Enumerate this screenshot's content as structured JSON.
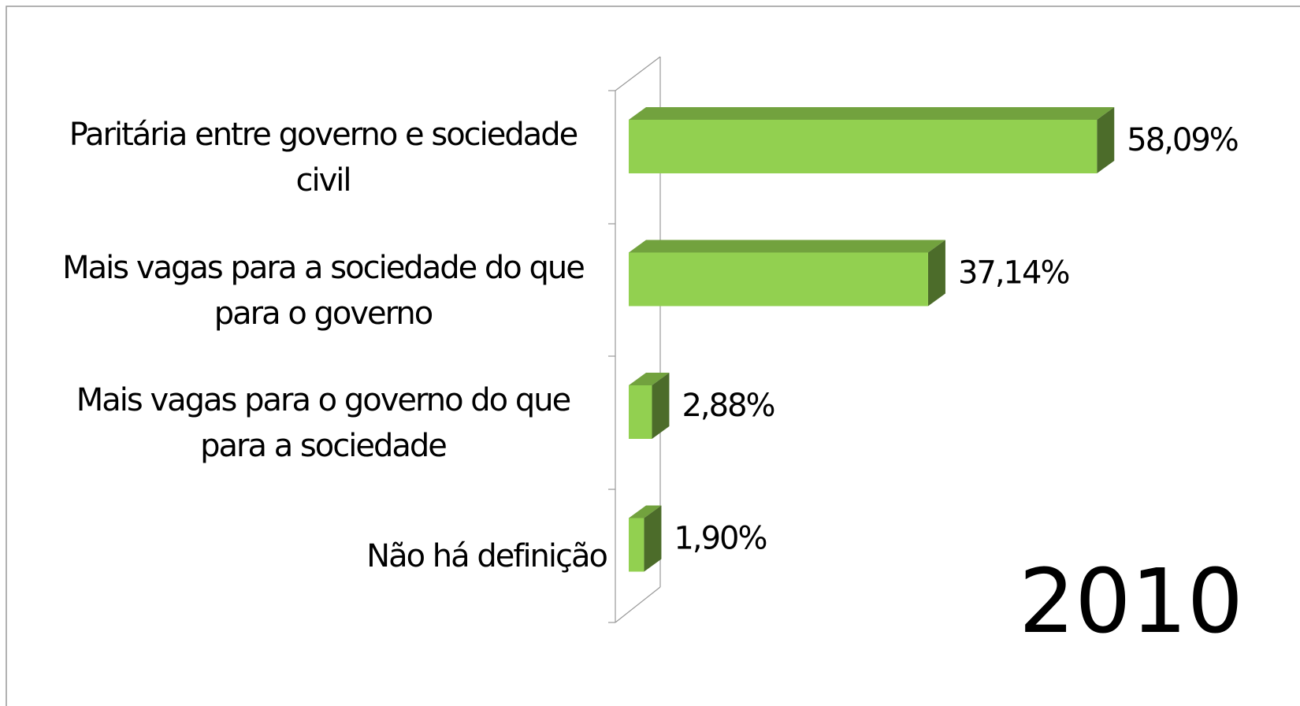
{
  "chart_data": {
    "type": "bar3d_horizontal",
    "categories": [
      "Paritária entre governo e sociedade civil",
      "Mais vagas para a sociedade do que para o governo",
      "Mais vagas para o governo do que para a sociedade",
      "Não há definição"
    ],
    "values": [
      58.09,
      37.14,
      2.88,
      1.9
    ],
    "value_labels": [
      "58,09%",
      "37,14%",
      "2,88%",
      "1,90%"
    ],
    "color": "#92d050",
    "annotation": "2010"
  }
}
